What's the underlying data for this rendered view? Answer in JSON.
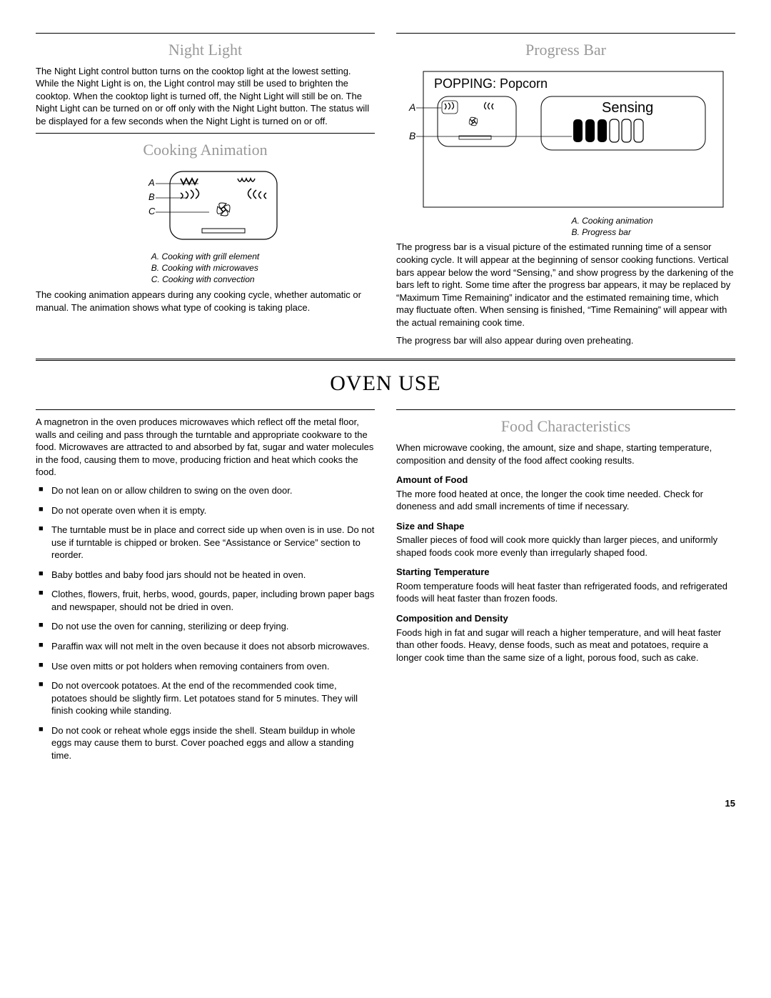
{
  "nightLight": {
    "heading": "Night Light",
    "body": "The Night Light control button turns on the cooktop light at the lowest setting. While the Night Light is on, the Light control may still be used to brighten the cooktop. When the cooktop light is turned off, the Night Light will still be on. The Night Light can be turned on or off only with the Night Light button. The status will be displayed for a few seconds when the Night Light is turned on or off."
  },
  "cookingAnimation": {
    "heading": "Cooking Animation",
    "caption": {
      "a": "A. Cooking with grill element",
      "b": "B. Cooking with microwaves",
      "c": "C. Cooking with convection"
    },
    "body": "The cooking animation appears during any cooking cycle, whether automatic or manual. The animation shows what type of cooking is taking place."
  },
  "progressBar": {
    "heading": "Progress Bar",
    "diagramTitle": "POPPING: Popcorn",
    "diagramSensing": "Sensing",
    "caption": {
      "a": "A. Cooking animation",
      "b": "B. Progress bar"
    },
    "body1": "The progress bar is a visual picture of the estimated running time of a sensor cooking cycle. It will appear at the beginning of sensor cooking functions. Vertical bars appear below the word “Sensing,” and show progress by the darkening of the bars left to right. Some time after the progress bar appears, it may be replaced by “Maximum Time Remaining” indicator and the estimated remaining time, which may fluctuate often. When sensing is finished, “Time Remaining” will appear with the actual remaining cook time.",
    "body2": "The progress bar will also appear during oven preheating."
  },
  "ovenUse": {
    "heading": "OVEN USE",
    "intro": "A magnetron in the oven produces microwaves which reflect off the metal floor, walls and ceiling and pass through the turntable and appropriate cookware to the food. Microwaves are attracted to and absorbed by fat, sugar and water molecules in the food, causing them to move, producing friction and heat which cooks the food.",
    "bullets": [
      "Do not lean on or allow children to swing on the oven door.",
      "Do not operate oven when it is empty.",
      "The turntable must be in place and correct side up when oven is in use. Do not use if turntable is chipped or broken. See “Assistance or Service” section to reorder.",
      "Baby bottles and baby food jars should not be heated in oven.",
      "Clothes, flowers, fruit, herbs, wood, gourds, paper, including brown paper bags and newspaper, should not be dried in oven.",
      "Do not use the oven for canning, sterilizing or deep frying.",
      "Paraffin wax will not melt in the oven because it does not absorb microwaves.",
      "Use oven mitts or pot holders when removing containers from oven.",
      "Do not overcook potatoes. At the end of the recommended cook time, potatoes should be slightly firm. Let potatoes stand for 5 minutes. They will finish cooking while standing.",
      "Do not cook or reheat whole eggs inside the shell. Steam buildup in whole eggs may cause them to burst. Cover poached eggs and allow a standing time."
    ]
  },
  "foodChar": {
    "heading": "Food Characteristics",
    "intro": "When microwave cooking, the amount, size and shape, starting temperature, composition and density of the food affect cooking results.",
    "amountTitle": "Amount of Food",
    "amountBody": "The more food heated at once, the longer the cook time needed. Check for doneness and add small increments of time if necessary.",
    "sizeTitle": "Size and Shape",
    "sizeBody": "Smaller pieces of food will cook more quickly than larger pieces, and uniformly shaped foods cook more evenly than irregularly shaped food.",
    "tempTitle": "Starting Temperature",
    "tempBody": "Room temperature foods will heat faster than refrigerated foods, and refrigerated foods will heat faster than frozen foods.",
    "compTitle": "Composition and Density",
    "compBody": "Foods high in fat and sugar will reach a higher temperature, and will heat faster than other foods. Heavy, dense foods, such as meat and potatoes, require a longer cook time than the same size of a light, porous food, such as cake."
  },
  "pageNumber": "15"
}
